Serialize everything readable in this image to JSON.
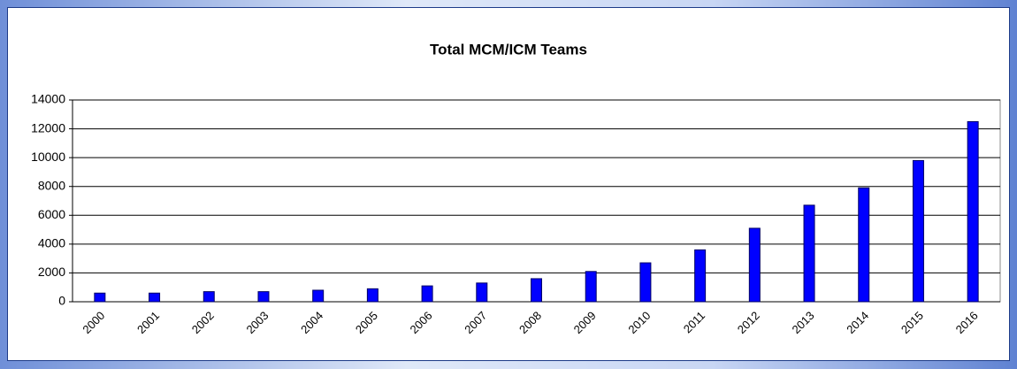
{
  "chart_data": {
    "type": "bar",
    "title": "Total MCM/ICM Teams",
    "categories": [
      "2000",
      "2001",
      "2002",
      "2003",
      "2004",
      "2005",
      "2006",
      "2007",
      "2008",
      "2009",
      "2010",
      "2011",
      "2012",
      "2013",
      "2014",
      "2015",
      "2016"
    ],
    "values": [
      600,
      600,
      700,
      700,
      800,
      900,
      1100,
      1300,
      1600,
      2100,
      2700,
      3600,
      5100,
      6700,
      7900,
      9800,
      12500
    ],
    "color": "#0000ff",
    "ylim": [
      0,
      14000
    ],
    "yticks": [
      0,
      2000,
      4000,
      6000,
      8000,
      10000,
      12000,
      14000
    ],
    "grid": true
  }
}
